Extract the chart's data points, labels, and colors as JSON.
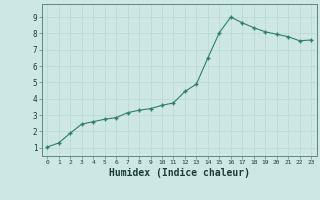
{
  "x": [
    0,
    1,
    2,
    3,
    4,
    5,
    6,
    7,
    8,
    9,
    10,
    11,
    12,
    13,
    14,
    15,
    16,
    17,
    18,
    19,
    20,
    21,
    22,
    23
  ],
  "y": [
    1.05,
    1.3,
    1.9,
    2.45,
    2.6,
    2.75,
    2.85,
    3.15,
    3.3,
    3.4,
    3.6,
    3.75,
    4.45,
    4.9,
    6.5,
    8.05,
    9.0,
    8.65,
    8.35,
    8.1,
    7.95,
    7.8,
    7.55,
    7.6
  ],
  "xlabel": "Humidex (Indice chaleur)",
  "xlim": [
    -0.5,
    23.5
  ],
  "ylim": [
    0.5,
    9.8
  ],
  "line_color": "#2e7d6e",
  "bg_color": "#cde8e4",
  "grid_color": "#b8d8d4",
  "tick_label_color": "#1a3a3a",
  "xlabel_color": "#1a3a3a",
  "ytick_values": [
    1,
    2,
    3,
    4,
    5,
    6,
    7,
    8,
    9
  ],
  "ytick_labels": [
    "1",
    "2",
    "3",
    "4",
    "5",
    "6",
    "7",
    "8",
    "9"
  ]
}
